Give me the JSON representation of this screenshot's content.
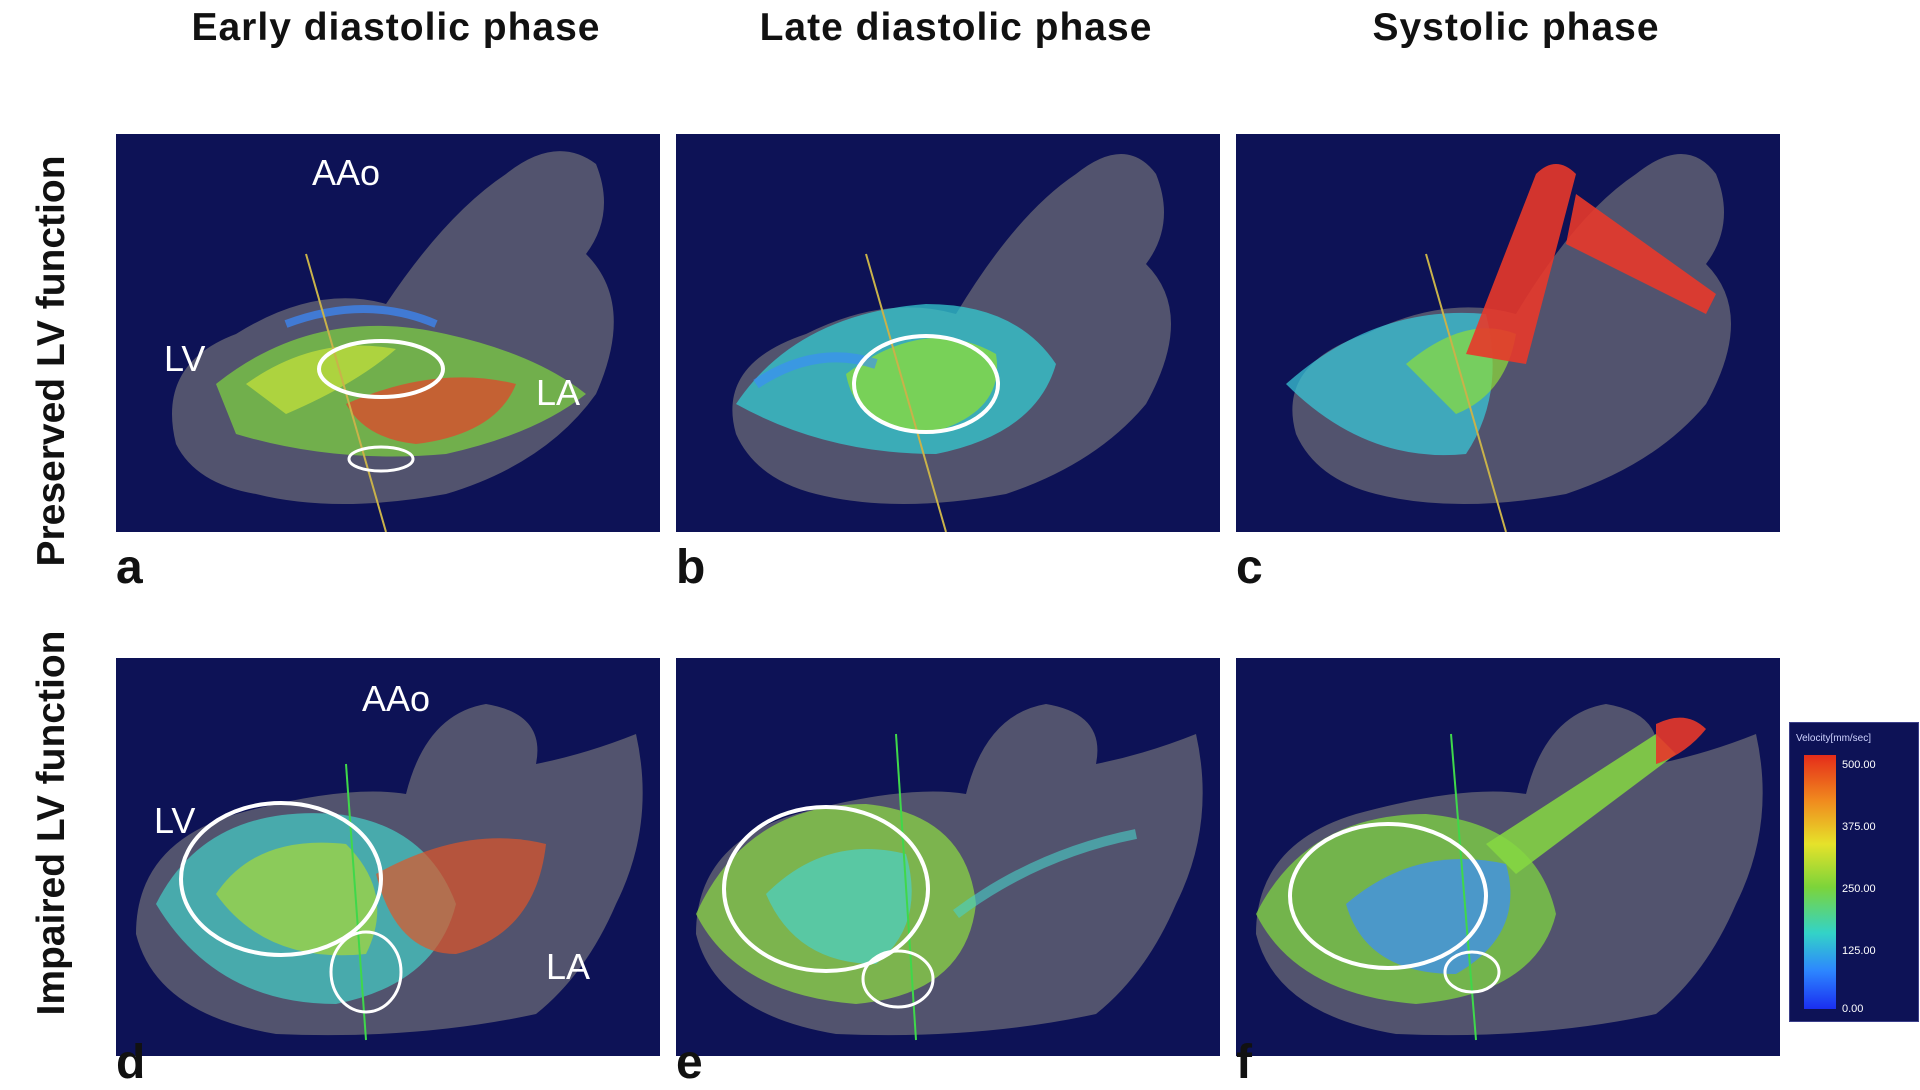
{
  "columns": [
    "Early diastolic phase",
    "Late diastolic phase",
    "Systolic phase"
  ],
  "rows": [
    "Preserved LV function",
    "Impaired LV function"
  ],
  "panels": [
    {
      "letter": "a",
      "labels": [
        "AAo",
        "LV",
        "LA"
      ]
    },
    {
      "letter": "b",
      "labels": []
    },
    {
      "letter": "c",
      "labels": []
    },
    {
      "letter": "d",
      "labels": [
        "AAo",
        "LV",
        "LA"
      ]
    },
    {
      "letter": "e",
      "labels": []
    },
    {
      "letter": "f",
      "labels": []
    }
  ],
  "legend": {
    "title": "Velocity[mm/sec]",
    "ticks": [
      "500.00",
      "375.00",
      "250.00",
      "125.00",
      "0.00"
    ],
    "colors": [
      "#e52c1a",
      "#e6e22a",
      "#7cd43a",
      "#33d3c7",
      "#1a2ef0"
    ]
  }
}
